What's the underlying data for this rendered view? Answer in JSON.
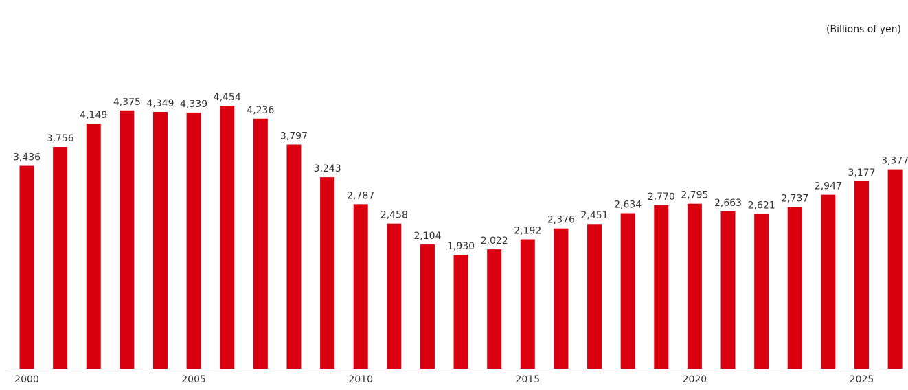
{
  "chart_data": {
    "type": "bar",
    "unit_label": "(Billions of yen)",
    "categories": [
      "2000",
      "2001",
      "2002",
      "2003",
      "2004",
      "2005",
      "2006",
      "2007",
      "2008",
      "2009",
      "2010",
      "2011",
      "2012",
      "2013",
      "2014",
      "2015",
      "2016",
      "2017",
      "2018",
      "2019",
      "2020",
      "2021",
      "2022",
      "2023",
      "2024",
      "2025",
      "2026"
    ],
    "values": [
      3436,
      3756,
      4149,
      4375,
      4349,
      4339,
      4454,
      4236,
      3797,
      3243,
      2787,
      2458,
      2104,
      1930,
      2022,
      2192,
      2376,
      2451,
      2634,
      2770,
      2795,
      2663,
      2621,
      2737,
      2947,
      3177,
      3377
    ],
    "data_labels": [
      "3,436",
      "3,756",
      "4,149",
      "4,375",
      "4,349",
      "4,339",
      "4,454",
      "4,236",
      "3,797",
      "3,243",
      "2,787",
      "2,458",
      "2,104",
      "1,930",
      "2,022",
      "2,192",
      "2,376",
      "2,451",
      "2,634",
      "2,770",
      "2,795",
      "2,663",
      "2,621",
      "2,737",
      "2,947",
      "3,177",
      "3,377"
    ],
    "x_tick_labels": [
      {
        "category": "2000",
        "label": "2000"
      },
      {
        "category": "2005",
        "label": "2005"
      },
      {
        "category": "2010",
        "label": "2010"
      },
      {
        "category": "2015",
        "label": "2015"
      },
      {
        "category": "2020",
        "label": "2020"
      },
      {
        "category": "2025",
        "label": "2025"
      }
    ],
    "title": "",
    "xlabel": "",
    "ylabel": "",
    "ylim": [
      0,
      4454
    ],
    "grid": false,
    "legend": "none",
    "bar_color": "#d9000f",
    "axis_color": "#cccccc",
    "label_color": "#333333"
  }
}
